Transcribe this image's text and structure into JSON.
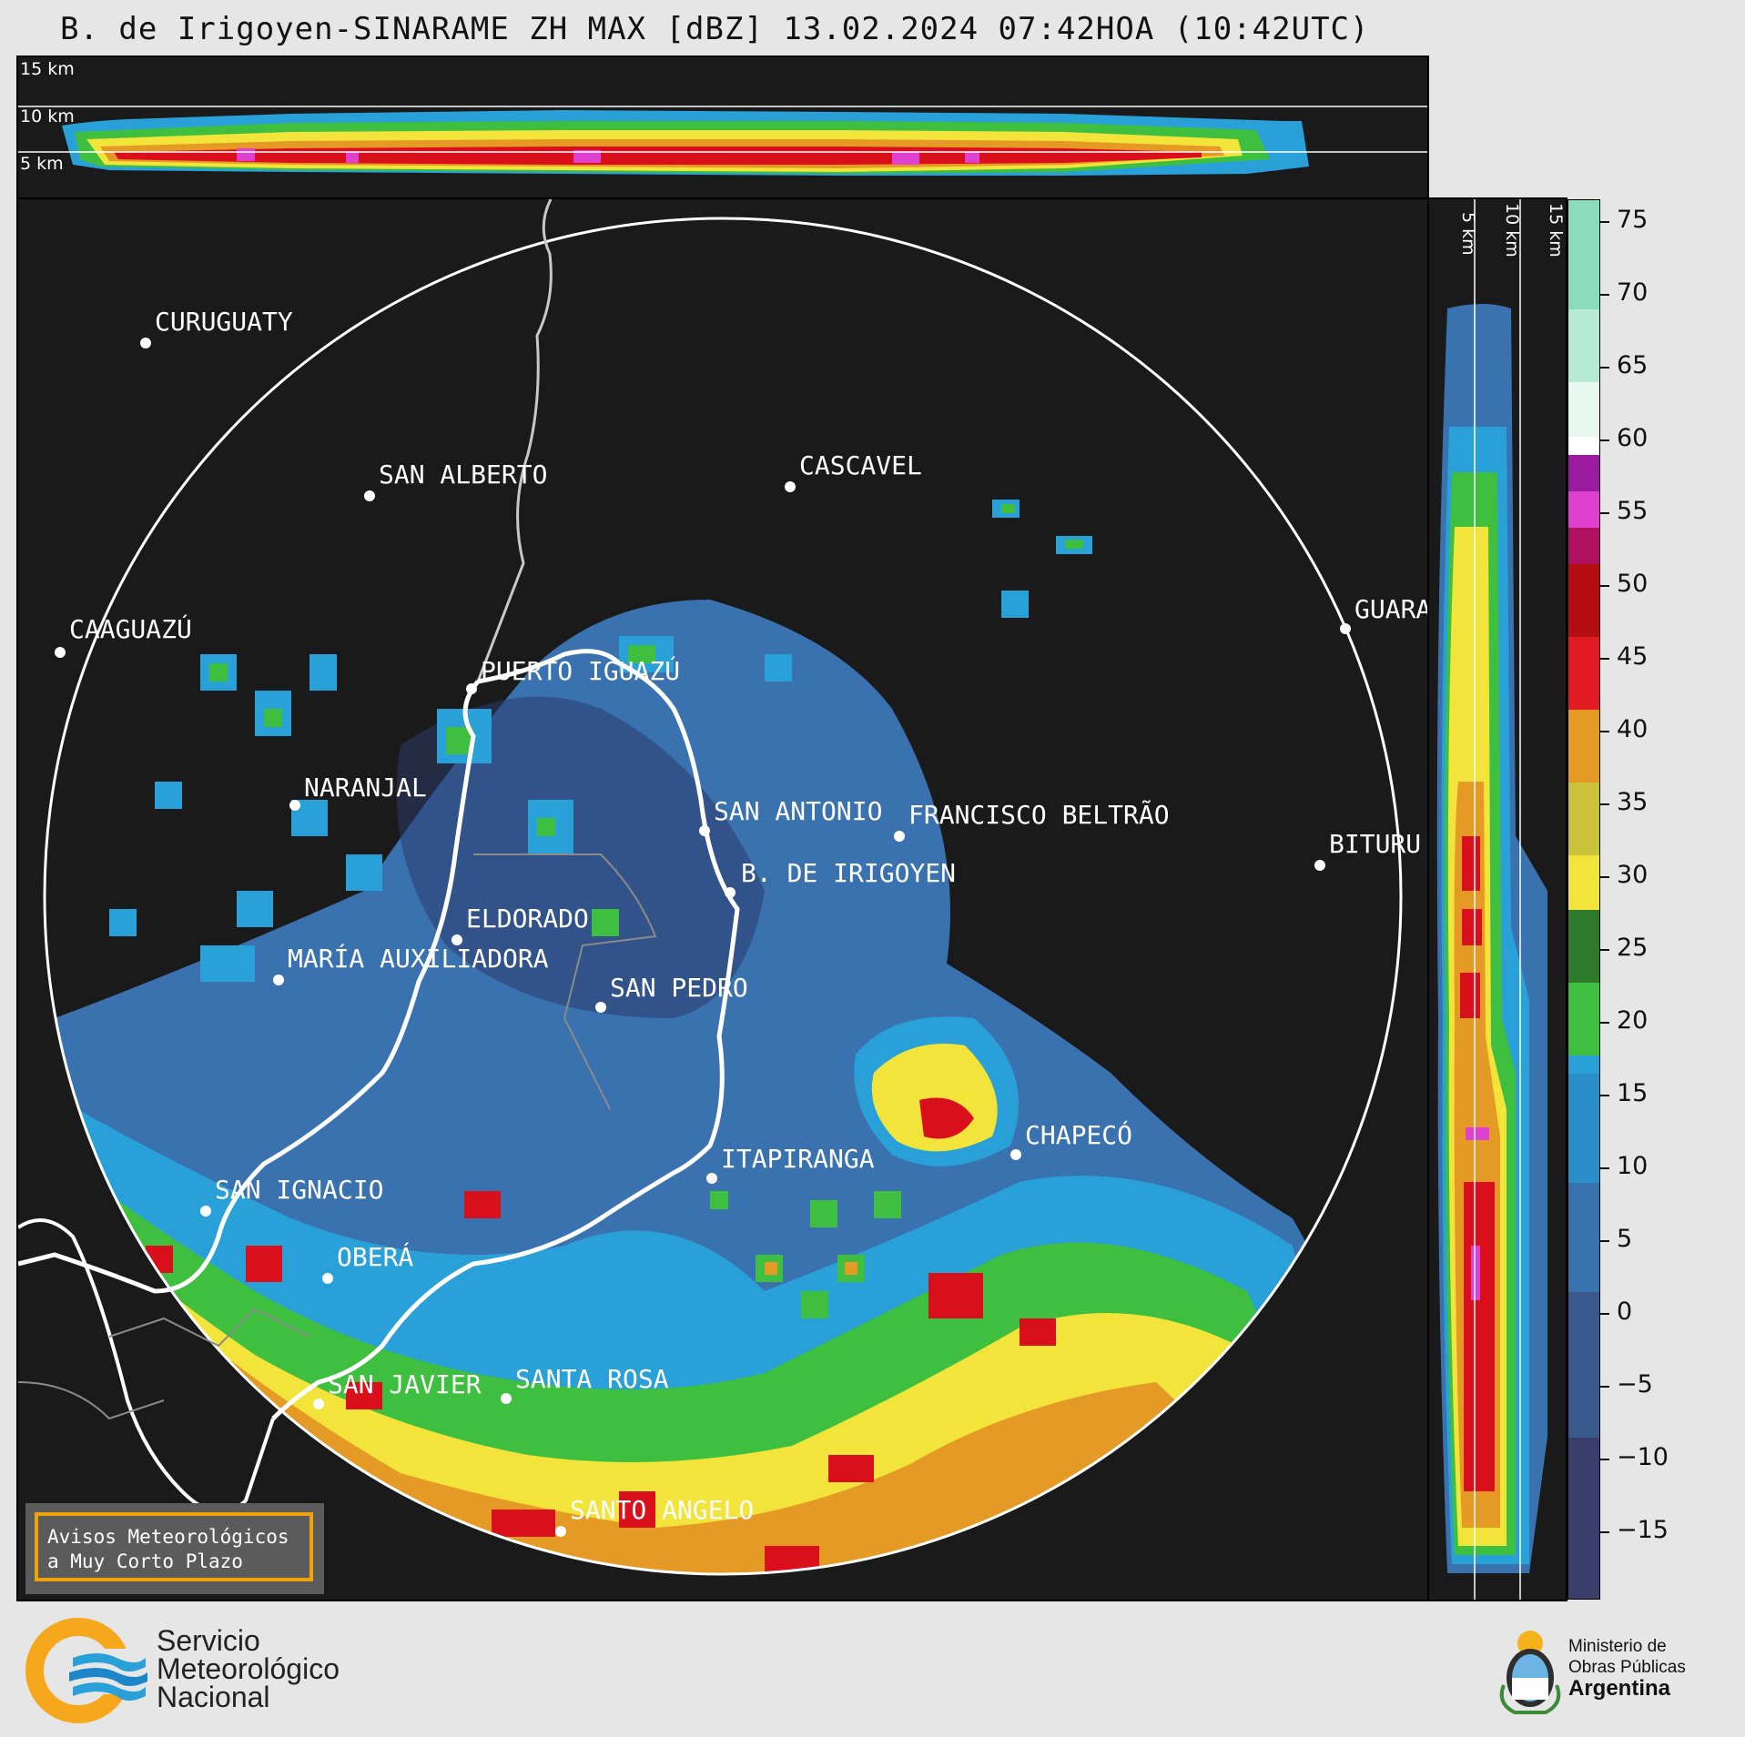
{
  "title": "B. de Irigoyen-SINARAME ZH MAX [dBZ] 13.02.2024 07:42HOA (10:42UTC)",
  "top_panel": {
    "height_labels": [
      "15 km",
      "10 km",
      "5 km"
    ]
  },
  "side_panel": {
    "height_labels": [
      "5 km",
      "10 km",
      "15 km"
    ]
  },
  "cities": [
    {
      "name": "CURUGUATY"
    },
    {
      "name": "SAN ALBERTO"
    },
    {
      "name": "CASCAVEL"
    },
    {
      "name": "CAAGUAZÚ"
    },
    {
      "name": "GUARA"
    },
    {
      "name": "PUERTO IGUAZÚ"
    },
    {
      "name": "NARANJAL"
    },
    {
      "name": "SAN ANTONIO"
    },
    {
      "name": "FRANCISCO BELTRÃO"
    },
    {
      "name": "BITURU"
    },
    {
      "name": "B. DE IRIGOYEN"
    },
    {
      "name": "ELDORADO"
    },
    {
      "name": "MARÍA AUXILIADORA"
    },
    {
      "name": "SAN PEDRO"
    },
    {
      "name": "CHAPECÓ"
    },
    {
      "name": "ITAPIRANGA"
    },
    {
      "name": "SAN IGNACIO"
    },
    {
      "name": "OBERÁ"
    },
    {
      "name": "SAN JAVIER"
    },
    {
      "name": "SANTA ROSA"
    },
    {
      "name": "SANTO ANGELO"
    }
  ],
  "colorbar": {
    "unit": "dBZ",
    "range": [
      -20,
      77
    ],
    "ticks": [
      "75",
      "70",
      "65",
      "60",
      "55",
      "50",
      "45",
      "40",
      "35",
      "30",
      "25",
      "20",
      "15",
      "10",
      "5",
      "0",
      "−5",
      "−10",
      "−15"
    ],
    "colors": {
      "bg": "#1a1a1a",
      "blue_low": "#2c3a6a",
      "blue_mid": "#3a72b0",
      "blue_hi": "#2aa0d8",
      "green": "#3fbf3f",
      "yellow": "#f2e43a",
      "orange": "#e49a24",
      "red": "#d9101c",
      "magenta": "#e040d0",
      "white": "#ffffff",
      "mint": "#8adcbc"
    }
  },
  "avisos": {
    "line1": "Avisos Meteorológicos",
    "line2": "a Muy Corto Plazo"
  },
  "smn": {
    "line1": "Servicio",
    "line2": "Meteorológico",
    "line3": "Nacional"
  },
  "ministerio": {
    "line1": "Ministerio de",
    "line2": "Obras Públicas",
    "line3": "Argentina"
  }
}
